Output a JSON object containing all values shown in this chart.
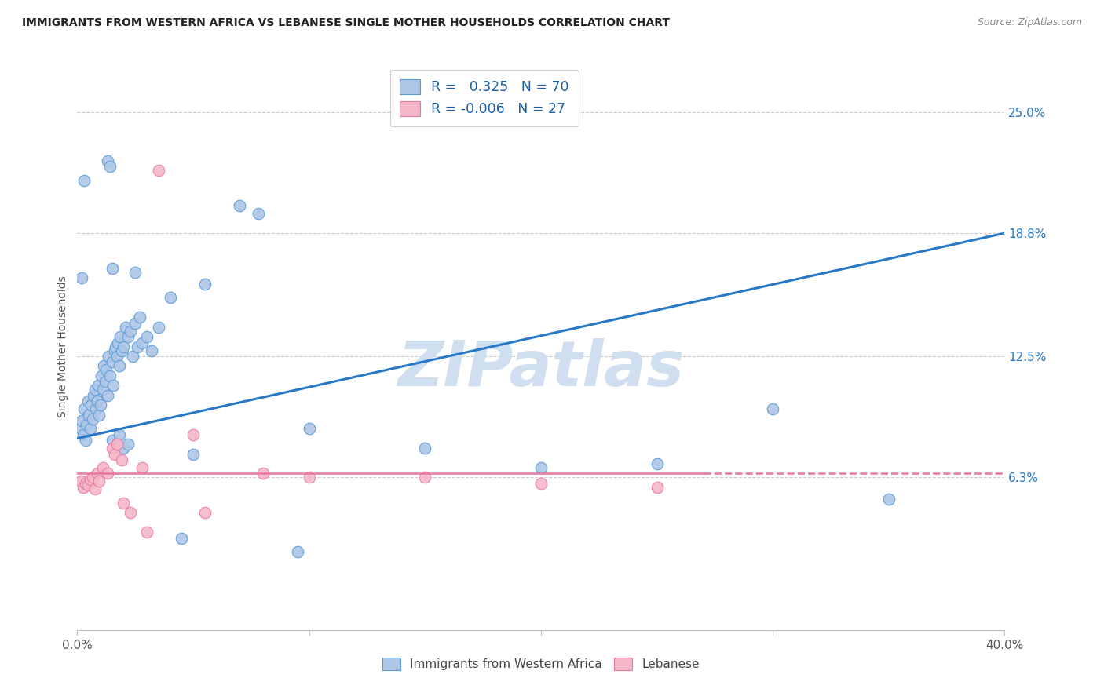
{
  "title": "IMMIGRANTS FROM WESTERN AFRICA VS LEBANESE SINGLE MOTHER HOUSEHOLDS CORRELATION CHART",
  "source": "Source: ZipAtlas.com",
  "ylabel": "Single Mother Households",
  "ytick_labels": [
    "6.3%",
    "12.5%",
    "18.8%",
    "25.0%"
  ],
  "ytick_values": [
    6.3,
    12.5,
    18.8,
    25.0
  ],
  "xlim": [
    0.0,
    40.0
  ],
  "ylim": [
    -1.5,
    27.5
  ],
  "legend1_R": "0.325",
  "legend1_N": "70",
  "legend2_R": "-0.006",
  "legend2_N": "27",
  "blue_color": "#aec6e8",
  "blue_edge_color": "#5b9bd5",
  "blue_line_color": "#2878c8",
  "pink_color": "#f4b8c8",
  "pink_edge_color": "#e878a0",
  "pink_line_color": "#e878a0",
  "title_color": "#222222",
  "source_color": "#888888",
  "watermark_color": "#d0dff0",
  "grid_color": "#cccccc",
  "legend_text_color": "#1a5fa8",
  "legend_N_color": "#1a5fa8",
  "blue_scatter": [
    [
      0.15,
      8.8
    ],
    [
      0.2,
      9.2
    ],
    [
      0.25,
      8.5
    ],
    [
      0.3,
      9.8
    ],
    [
      0.35,
      8.2
    ],
    [
      0.4,
      9.0
    ],
    [
      0.45,
      10.2
    ],
    [
      0.5,
      9.5
    ],
    [
      0.55,
      8.8
    ],
    [
      0.6,
      10.0
    ],
    [
      0.65,
      9.3
    ],
    [
      0.7,
      10.5
    ],
    [
      0.75,
      10.8
    ],
    [
      0.8,
      9.8
    ],
    [
      0.85,
      10.2
    ],
    [
      0.9,
      11.0
    ],
    [
      0.95,
      9.5
    ],
    [
      1.0,
      10.0
    ],
    [
      1.05,
      11.5
    ],
    [
      1.1,
      10.8
    ],
    [
      1.15,
      12.0
    ],
    [
      1.2,
      11.2
    ],
    [
      1.25,
      11.8
    ],
    [
      1.3,
      10.5
    ],
    [
      1.35,
      12.5
    ],
    [
      1.4,
      11.5
    ],
    [
      1.5,
      12.2
    ],
    [
      1.55,
      11.0
    ],
    [
      1.6,
      12.8
    ],
    [
      1.65,
      13.0
    ],
    [
      1.7,
      12.5
    ],
    [
      1.75,
      13.2
    ],
    [
      1.8,
      12.0
    ],
    [
      1.85,
      13.5
    ],
    [
      1.9,
      12.8
    ],
    [
      2.0,
      13.0
    ],
    [
      2.1,
      14.0
    ],
    [
      2.2,
      13.5
    ],
    [
      2.3,
      13.8
    ],
    [
      2.4,
      12.5
    ],
    [
      2.5,
      14.2
    ],
    [
      2.6,
      13.0
    ],
    [
      2.7,
      14.5
    ],
    [
      2.8,
      13.2
    ],
    [
      3.0,
      13.5
    ],
    [
      3.2,
      12.8
    ],
    [
      3.5,
      14.0
    ],
    [
      0.2,
      16.5
    ],
    [
      1.5,
      17.0
    ],
    [
      2.5,
      16.8
    ],
    [
      4.0,
      15.5
    ],
    [
      5.5,
      16.2
    ],
    [
      7.0,
      20.2
    ],
    [
      7.8,
      19.8
    ],
    [
      10.0,
      8.8
    ],
    [
      15.0,
      7.8
    ],
    [
      20.0,
      6.8
    ],
    [
      25.0,
      7.0
    ],
    [
      30.0,
      9.8
    ],
    [
      35.0,
      5.2
    ],
    [
      1.5,
      8.2
    ],
    [
      1.8,
      8.5
    ],
    [
      2.0,
      7.8
    ],
    [
      2.2,
      8.0
    ],
    [
      0.3,
      21.5
    ],
    [
      1.3,
      22.5
    ],
    [
      1.4,
      22.2
    ],
    [
      5.0,
      7.5
    ],
    [
      9.5,
      2.5
    ],
    [
      4.5,
      3.2
    ]
  ],
  "pink_scatter": [
    [
      0.15,
      6.1
    ],
    [
      0.25,
      5.8
    ],
    [
      0.35,
      6.0
    ],
    [
      0.45,
      5.9
    ],
    [
      0.55,
      6.2
    ],
    [
      0.65,
      6.3
    ],
    [
      0.75,
      5.7
    ],
    [
      0.85,
      6.5
    ],
    [
      0.95,
      6.1
    ],
    [
      1.1,
      6.8
    ],
    [
      1.3,
      6.5
    ],
    [
      1.5,
      7.8
    ],
    [
      1.6,
      7.5
    ],
    [
      1.7,
      8.0
    ],
    [
      1.9,
      7.2
    ],
    [
      2.0,
      5.0
    ],
    [
      2.3,
      4.5
    ],
    [
      2.8,
      6.8
    ],
    [
      3.5,
      22.0
    ],
    [
      5.0,
      8.5
    ],
    [
      8.0,
      6.5
    ],
    [
      10.0,
      6.3
    ],
    [
      15.0,
      6.3
    ],
    [
      20.0,
      6.0
    ],
    [
      25.0,
      5.8
    ],
    [
      5.5,
      4.5
    ],
    [
      3.0,
      3.5
    ]
  ],
  "blue_line_x": [
    0.0,
    40.0
  ],
  "blue_line_y_start": 8.3,
  "blue_line_y_end": 18.8,
  "pink_line_y": 6.5,
  "pink_solid_end": 27.0,
  "pink_dashed_start": 27.0,
  "pink_dashed_end": 40.0
}
